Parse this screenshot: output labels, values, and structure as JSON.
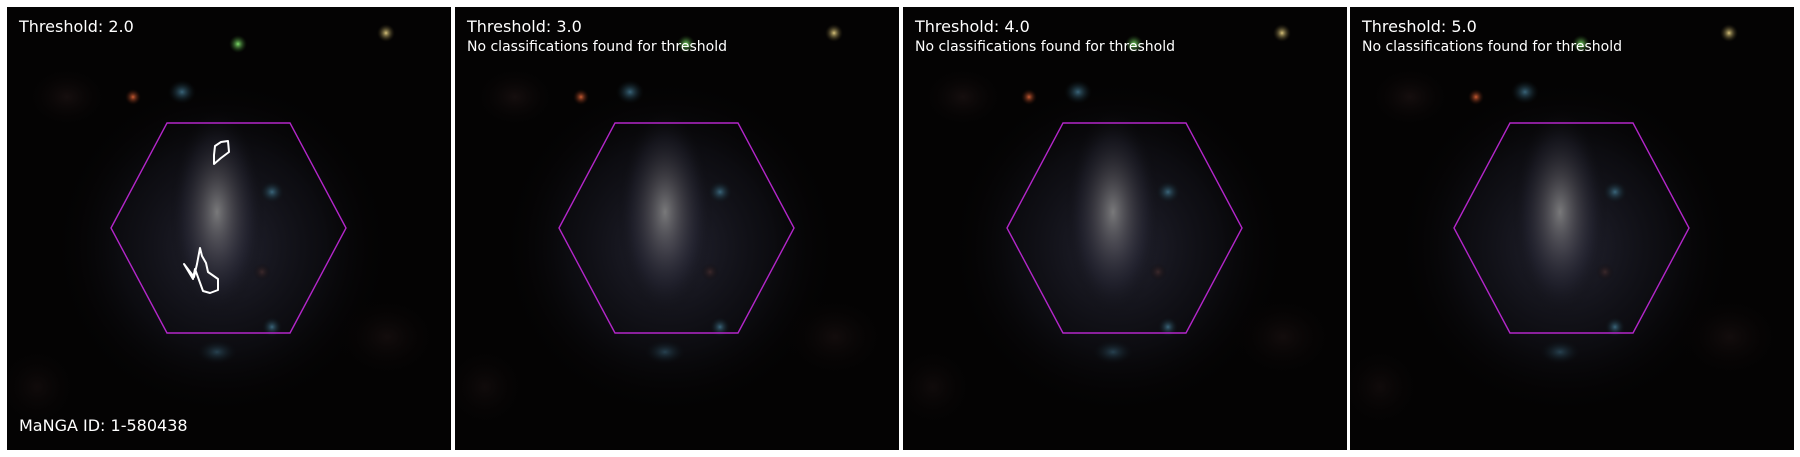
{
  "panels": [
    {
      "title": "Threshold: 2.0",
      "message": "",
      "footer": "MaNGA ID: 1-580438",
      "has_contours": true
    },
    {
      "title": "Threshold: 3.0",
      "message": "No classifications found for threshold",
      "footer": "",
      "has_contours": false
    },
    {
      "title": "Threshold: 4.0",
      "message": "No classifications found for threshold",
      "footer": "",
      "has_contours": false
    },
    {
      "title": "Threshold: 5.0",
      "message": "No classifications found for threshold",
      "footer": "",
      "has_contours": false
    }
  ],
  "colors": {
    "hexagon": "#b326c9",
    "contour": "#ffffff",
    "background": "#040303"
  }
}
